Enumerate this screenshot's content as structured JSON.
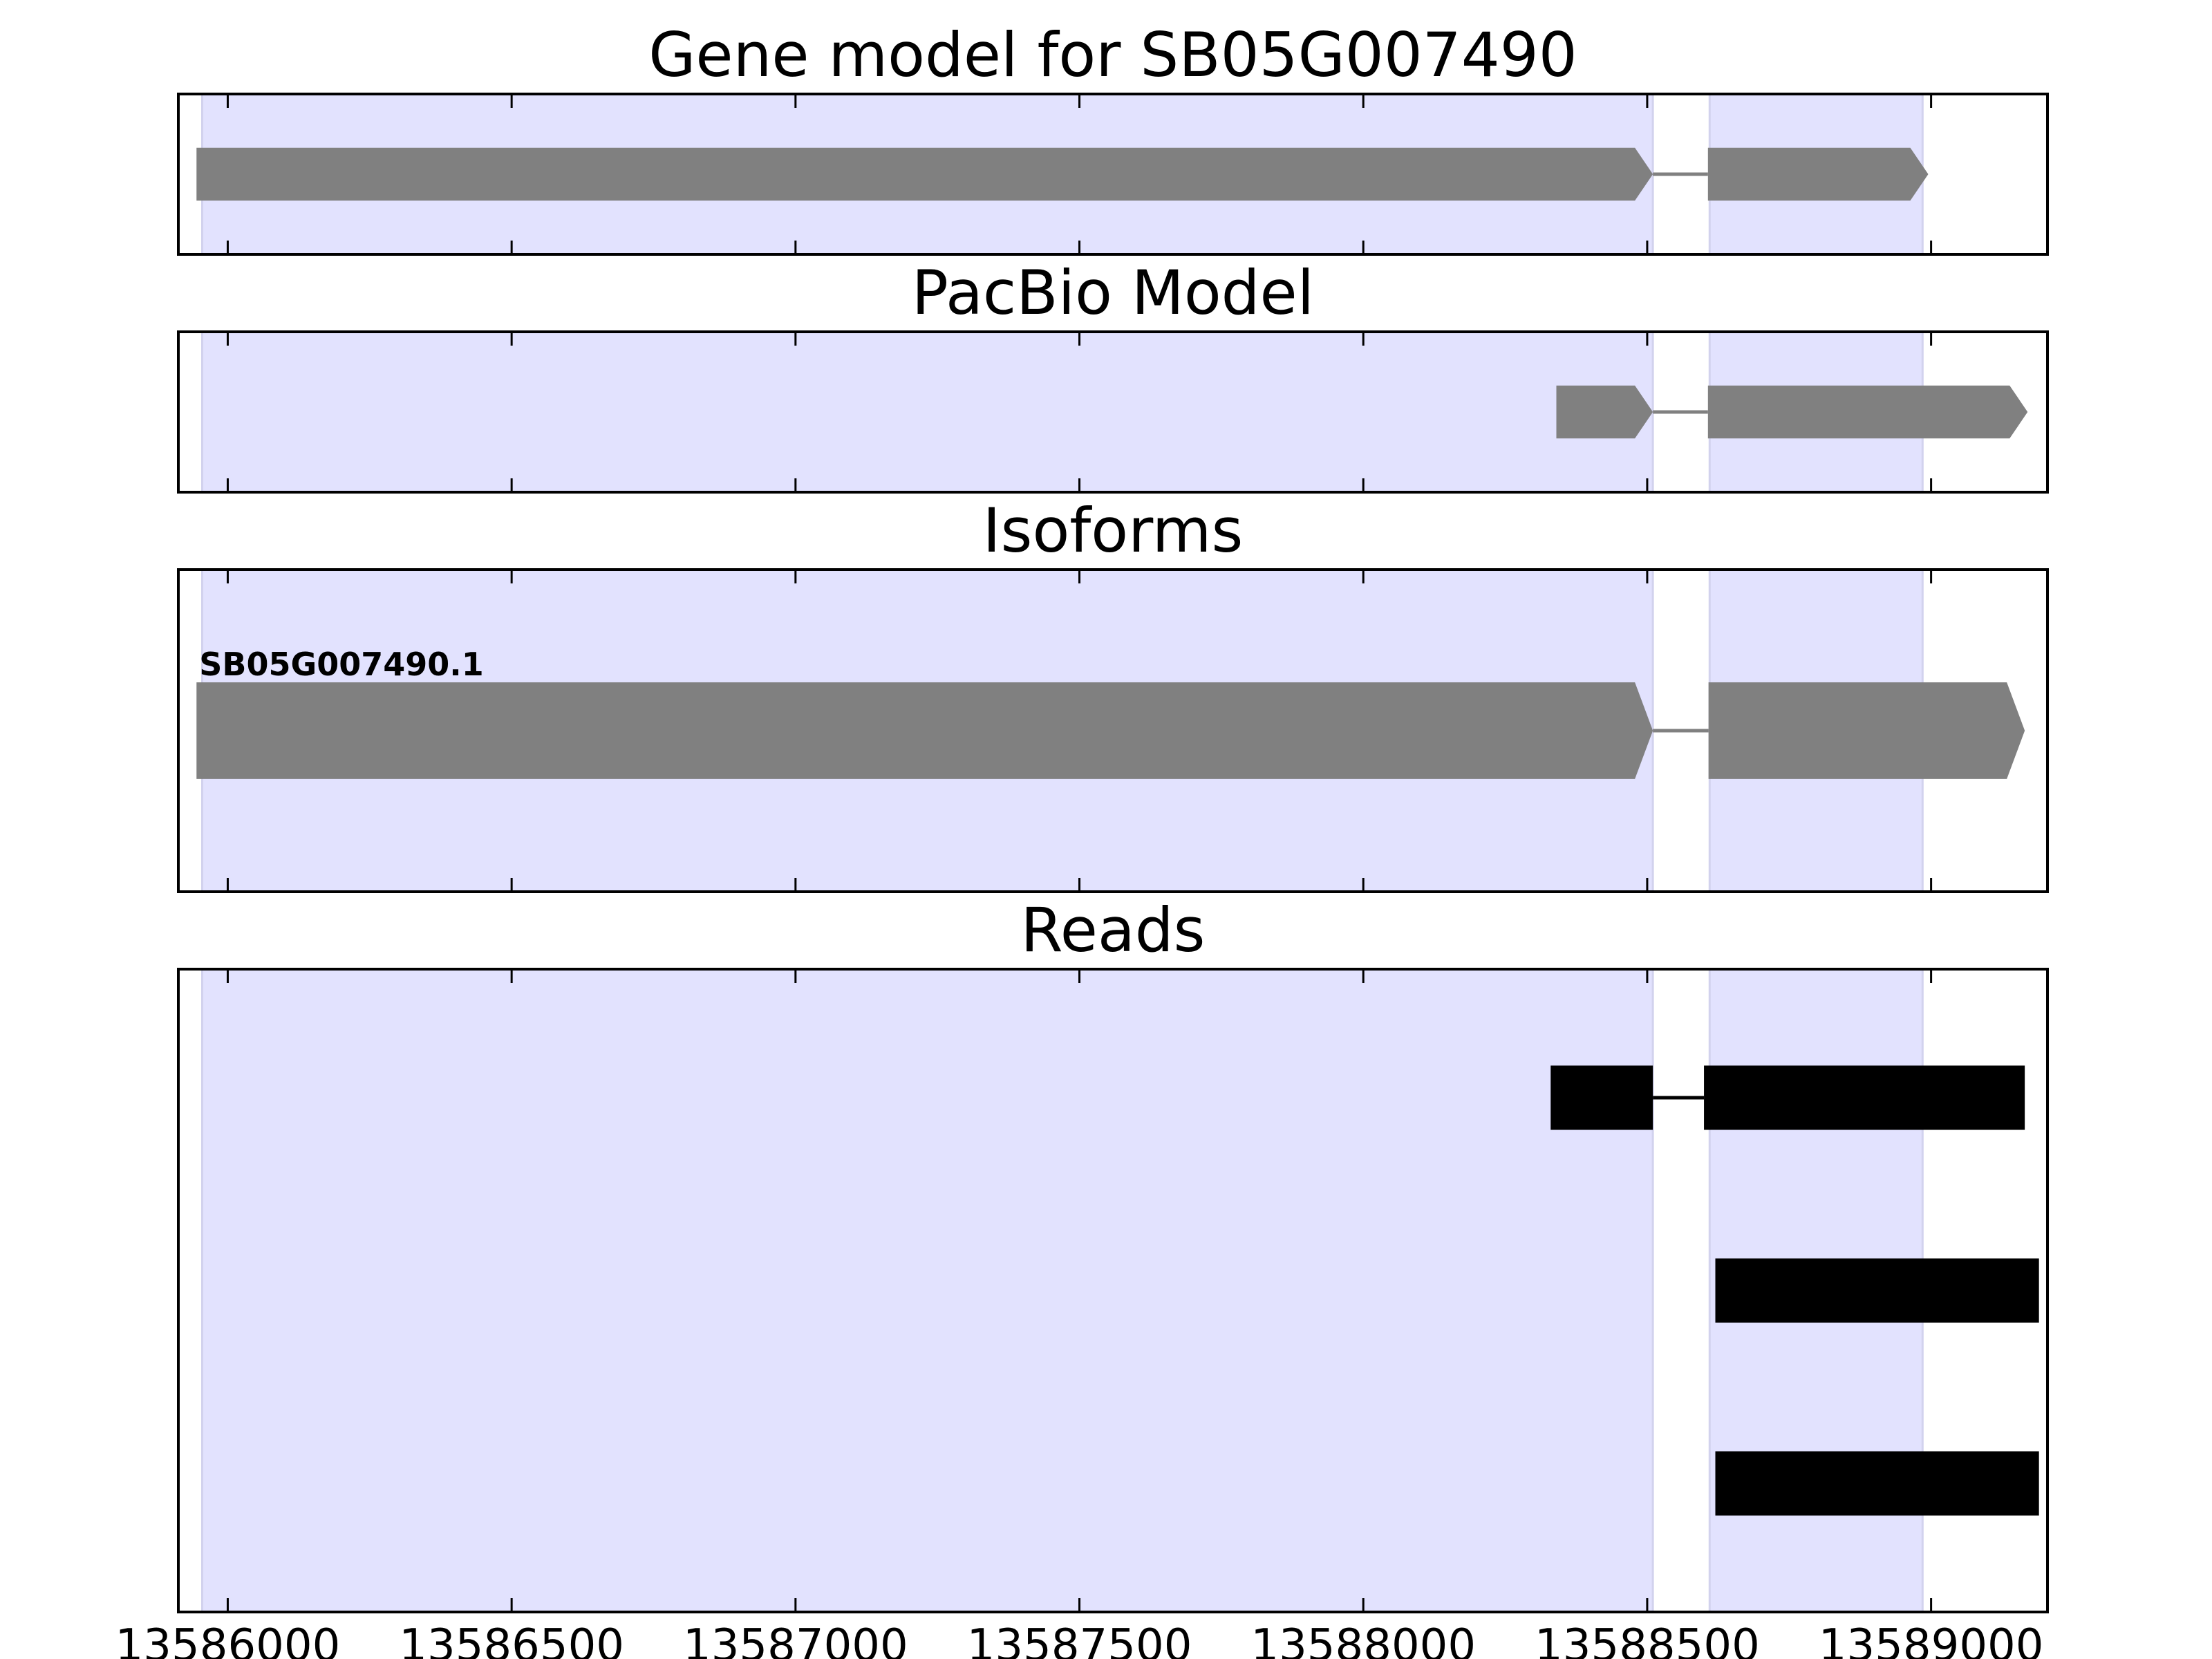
{
  "chart_data": {
    "type": "gene_model_track",
    "title": "Gene model for SB05G007490",
    "xlim": [
      13585913,
      13589205
    ],
    "x_ticks": [
      13586000,
      13586500,
      13587000,
      13587500,
      13588000,
      13588500,
      13589000
    ],
    "exon_regions": [
      {
        "start": 13585955,
        "end": 13588510
      },
      {
        "start": 13588610,
        "end": 13588985
      }
    ],
    "colors": {
      "exon_highlight": "#e2e2fe",
      "model_feature": "#808080",
      "read_feature": "#000000",
      "frame": "#000000"
    },
    "panels": [
      {
        "title": "Gene model for SB05G007490",
        "rows": 1,
        "features": [
          {
            "row": 0,
            "color": "gray",
            "height_fraction": 0.33,
            "strand": "+",
            "exons": [
              [
                13585945,
                13588510
              ],
              [
                13588607,
                13588995
              ]
            ]
          }
        ]
      },
      {
        "title": "PacBio Model",
        "rows": 1,
        "features": [
          {
            "row": 0,
            "color": "gray",
            "height_fraction": 0.33,
            "strand": "+",
            "exons": [
              [
                13588340,
                13588510
              ],
              [
                13588607,
                13589170
              ]
            ]
          }
        ]
      },
      {
        "title": "Isoforms",
        "rows": 1,
        "features": [
          {
            "row": 0,
            "label": "SB05G007490.1",
            "color": "gray",
            "height_fraction": 0.3,
            "strand": "+",
            "exons": [
              [
                13585945,
                13588510
              ],
              [
                13588608,
                13589165
              ]
            ]
          }
        ]
      },
      {
        "title": "Reads",
        "rows": 3,
        "features": [
          {
            "row": 0,
            "color": "black",
            "height_fraction": 0.1,
            "strand": "",
            "exons": [
              [
                13588330,
                13588510
              ],
              [
                13588600,
                13589165
              ]
            ]
          },
          {
            "row": 1,
            "color": "black",
            "height_fraction": 0.1,
            "strand": "",
            "exons": [
              [
                13588620,
                13589190
              ]
            ]
          },
          {
            "row": 2,
            "color": "black",
            "height_fraction": 0.1,
            "strand": "",
            "exons": [
              [
                13588620,
                13589190
              ]
            ]
          }
        ]
      }
    ]
  }
}
